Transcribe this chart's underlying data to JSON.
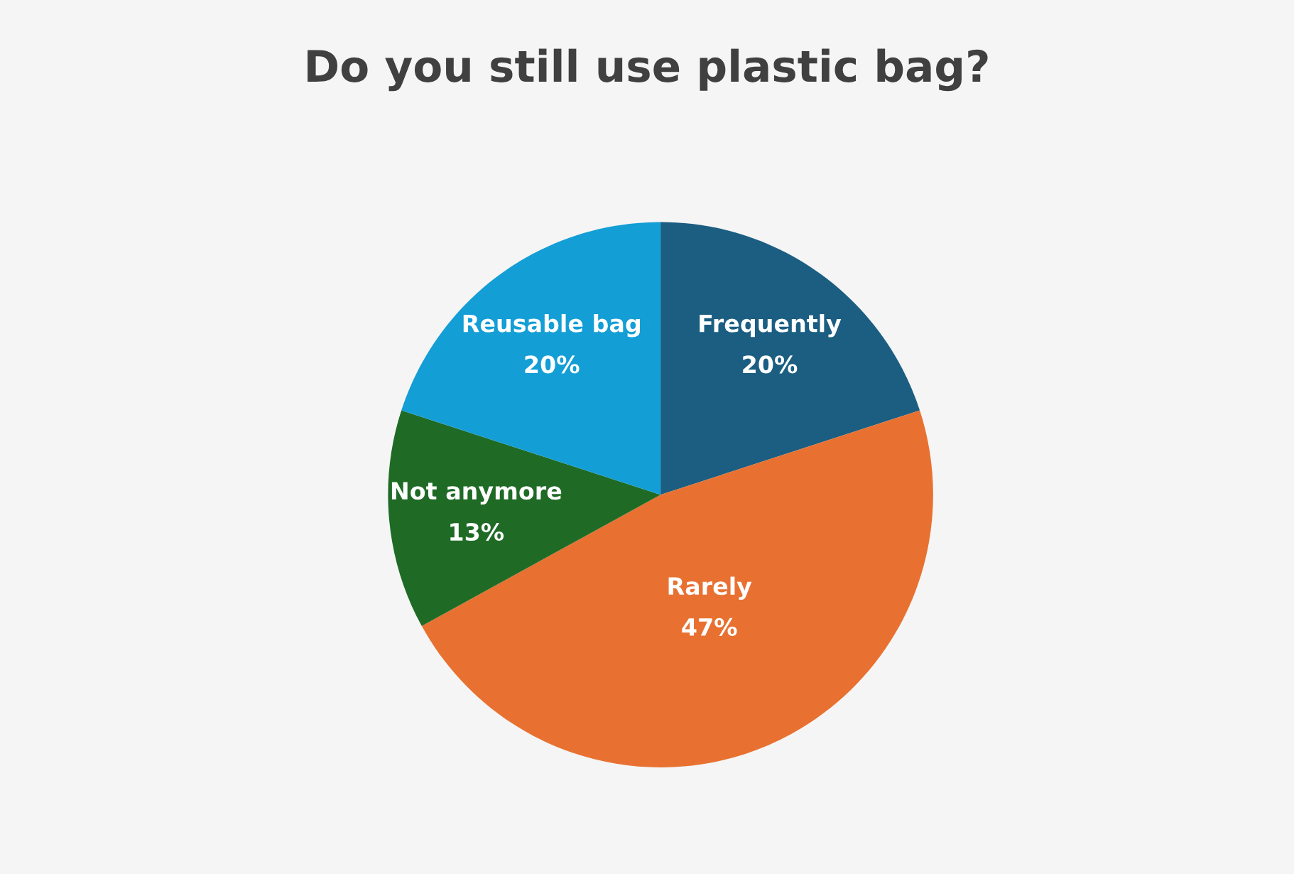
{
  "chart_data": {
    "type": "pie",
    "title": "Do you still use plastic bag?",
    "categories": [
      "Frequently",
      "Rarely",
      "Not anymore",
      "Reusable bag"
    ],
    "values": [
      20,
      47,
      13,
      20
    ],
    "colors": [
      "#1b5e82",
      "#e87131",
      "#1f6b26",
      "#139ed6"
    ],
    "value_labels": [
      "20%",
      "47%",
      "13%",
      "20%"
    ],
    "legend": false
  }
}
